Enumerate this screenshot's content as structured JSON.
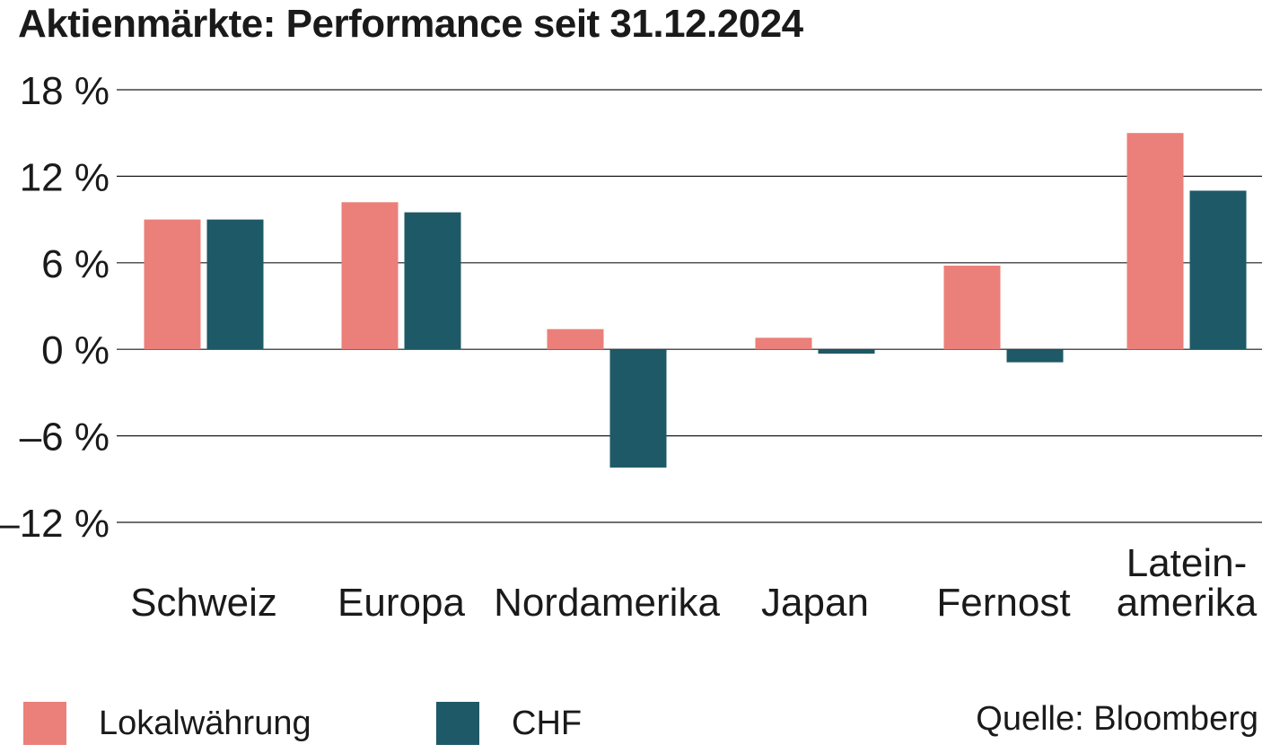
{
  "title": "Aktienmärkte: Performance seit 31.12.2024",
  "source": "Quelle: Bloomberg",
  "chart_data": {
    "type": "bar",
    "title": "Aktienmärkte: Performance seit 31.12.2024",
    "categories": [
      [
        "Schweiz"
      ],
      [
        "Europa"
      ],
      [
        "Nordamerika"
      ],
      [
        "Japan"
      ],
      [
        "Fernost"
      ],
      [
        "Latein-",
        "amerika"
      ]
    ],
    "series": [
      {
        "name": "Lokalwährung",
        "color": "#eb7f7a",
        "values": [
          9.0,
          10.2,
          1.4,
          0.8,
          5.8,
          15.0
        ]
      },
      {
        "name": "CHF",
        "color": "#1e5967",
        "values": [
          9.0,
          9.5,
          -8.2,
          -0.3,
          -0.9,
          11.0
        ]
      }
    ],
    "y_ticks": [
      {
        "value": 18,
        "label": "18 %"
      },
      {
        "value": 12,
        "label": "12 %"
      },
      {
        "value": 6,
        "label": "6 %"
      },
      {
        "value": 0,
        "label": "0 %"
      },
      {
        "value": -6,
        "label": "–6 %"
      },
      {
        "value": -12,
        "label": "–12 %"
      }
    ],
    "ylim": [
      -12,
      18
    ],
    "grid": true,
    "legend_position": "bottom-left",
    "xlabel": "",
    "ylabel": ""
  }
}
